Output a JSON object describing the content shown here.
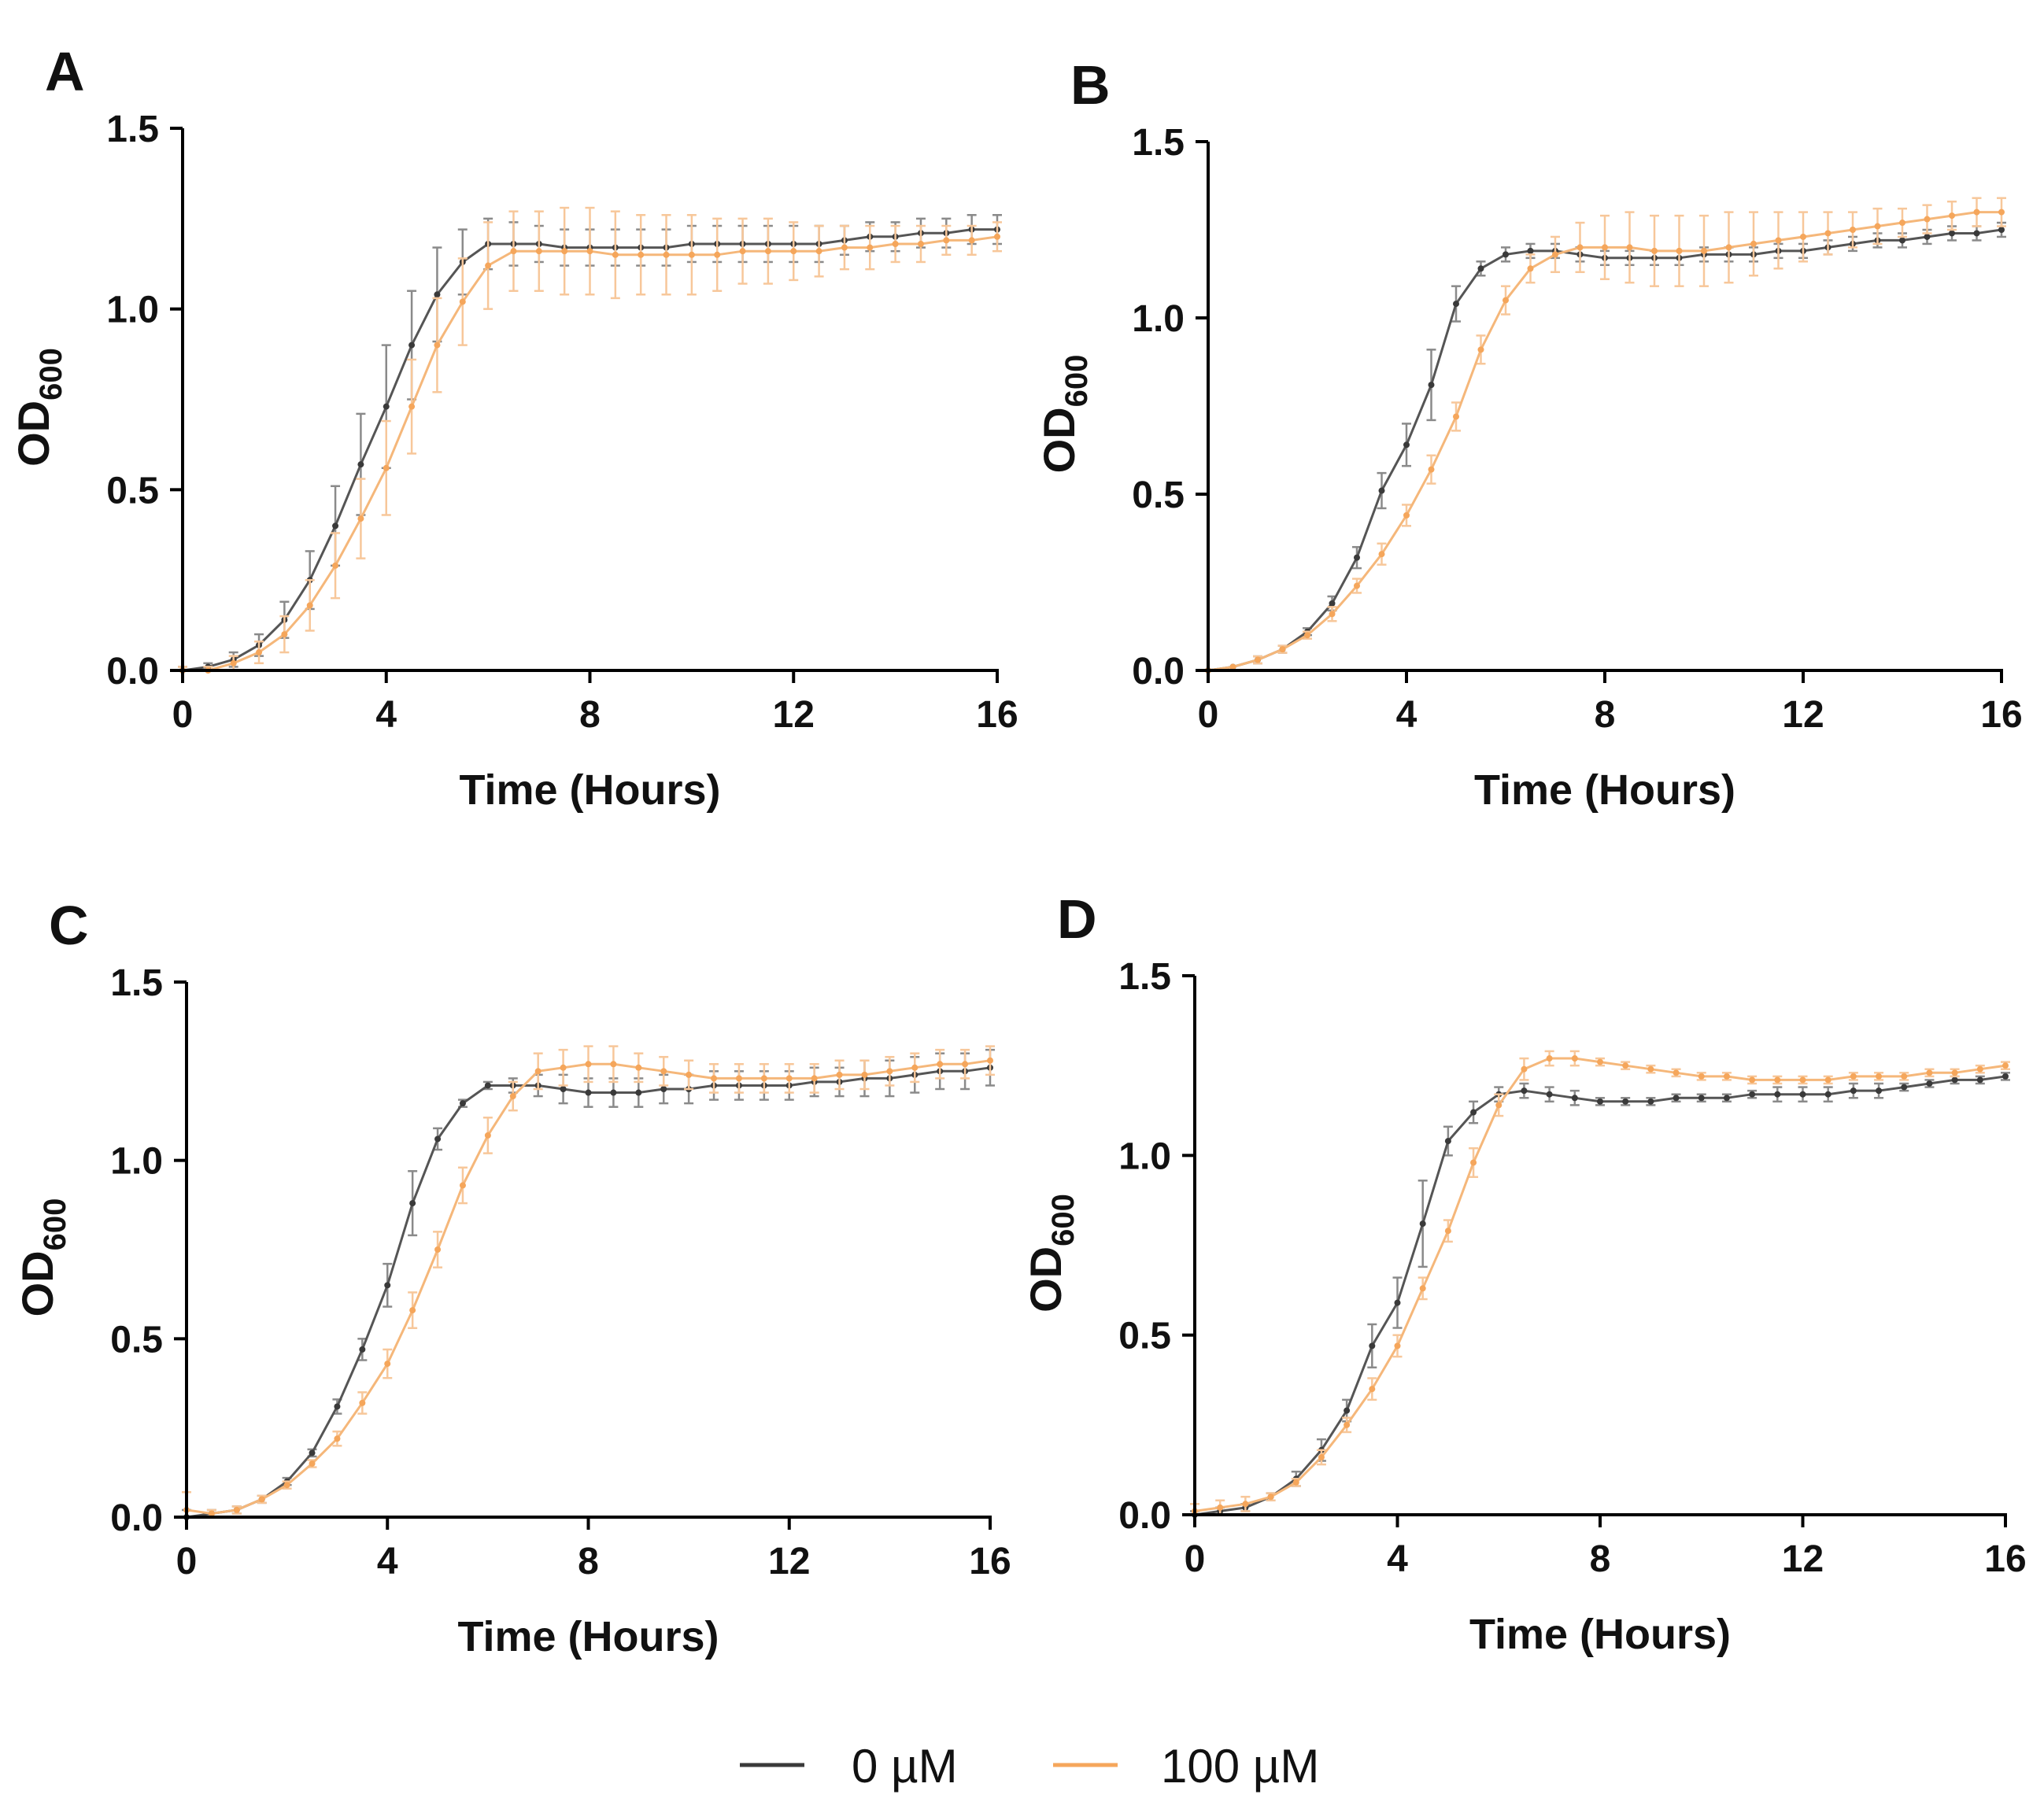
{
  "figure": {
    "legend": {
      "placement": "bottom-center",
      "entries": [
        {
          "label": "0 µM",
          "color": "#3a3a3a"
        },
        {
          "label": "100 µM",
          "color": "#f5a65b"
        }
      ]
    }
  },
  "chart_data": [
    {
      "panel": "A",
      "type": "line",
      "xlabel": "Time (Hours)",
      "ylabel_main": "OD",
      "ylabel_sub": "600",
      "xlim": [
        0,
        16
      ],
      "ylim": [
        0,
        1.5
      ],
      "xticks": [
        "0",
        "4",
        "8",
        "12",
        "16"
      ],
      "yticks": [
        "0.0",
        "0.5",
        "1.0",
        "1.5"
      ],
      "grid": false,
      "x": [
        0,
        0.5,
        1,
        1.5,
        2,
        2.5,
        3,
        3.5,
        4,
        4.5,
        5,
        5.5,
        6,
        6.5,
        7,
        7.5,
        8,
        8.5,
        9,
        9.5,
        10,
        10.5,
        11,
        11.5,
        12,
        12.5,
        13,
        13.5,
        14,
        14.5,
        15,
        15.5,
        16
      ],
      "series": [
        {
          "name": "0 µM",
          "color": "#3a3a3a",
          "values": [
            0.0,
            0.01,
            0.03,
            0.07,
            0.14,
            0.25,
            0.4,
            0.57,
            0.73,
            0.9,
            1.04,
            1.13,
            1.18,
            1.18,
            1.18,
            1.17,
            1.17,
            1.17,
            1.17,
            1.17,
            1.18,
            1.18,
            1.18,
            1.18,
            1.18,
            1.18,
            1.19,
            1.2,
            1.2,
            1.21,
            1.21,
            1.22,
            1.22
          ],
          "errors": [
            0.01,
            0.01,
            0.02,
            0.03,
            0.05,
            0.08,
            0.11,
            0.14,
            0.17,
            0.15,
            0.13,
            0.09,
            0.07,
            0.06,
            0.05,
            0.05,
            0.05,
            0.05,
            0.05,
            0.05,
            0.05,
            0.05,
            0.05,
            0.05,
            0.05,
            0.05,
            0.04,
            0.04,
            0.04,
            0.04,
            0.04,
            0.04,
            0.04
          ]
        },
        {
          "name": "100 µM",
          "color": "#f5a65b",
          "values": [
            0.0,
            0.0,
            0.02,
            0.05,
            0.1,
            0.18,
            0.29,
            0.42,
            0.56,
            0.73,
            0.9,
            1.02,
            1.12,
            1.16,
            1.16,
            1.16,
            1.16,
            1.15,
            1.15,
            1.15,
            1.15,
            1.15,
            1.16,
            1.16,
            1.16,
            1.16,
            1.17,
            1.17,
            1.18,
            1.18,
            1.19,
            1.19,
            1.2
          ],
          "errors": [
            0.01,
            0.01,
            0.02,
            0.03,
            0.05,
            0.07,
            0.09,
            0.11,
            0.13,
            0.13,
            0.13,
            0.12,
            0.12,
            0.11,
            0.11,
            0.12,
            0.12,
            0.12,
            0.11,
            0.11,
            0.11,
            0.1,
            0.09,
            0.09,
            0.08,
            0.07,
            0.06,
            0.06,
            0.05,
            0.05,
            0.04,
            0.04,
            0.04
          ]
        }
      ]
    },
    {
      "panel": "B",
      "type": "line",
      "xlabel": "Time (Hours)",
      "ylabel_main": "OD",
      "ylabel_sub": "600",
      "xlim": [
        0,
        16
      ],
      "ylim": [
        0,
        1.5
      ],
      "xticks": [
        "0",
        "4",
        "8",
        "12",
        "16"
      ],
      "yticks": [
        "0.0",
        "0.5",
        "1.0",
        "1.5"
      ],
      "grid": false,
      "x": [
        0,
        0.5,
        1,
        1.5,
        2,
        2.5,
        3,
        3.5,
        4,
        4.5,
        5,
        5.5,
        6,
        6.5,
        7,
        7.5,
        8,
        8.5,
        9,
        9.5,
        10,
        10.5,
        11,
        11.5,
        12,
        12.5,
        13,
        13.5,
        14,
        14.5,
        15,
        15.5,
        16
      ],
      "series": [
        {
          "name": "0 µM",
          "color": "#3a3a3a",
          "values": [
            0.0,
            0.01,
            0.03,
            0.06,
            0.11,
            0.19,
            0.32,
            0.51,
            0.64,
            0.81,
            1.04,
            1.14,
            1.18,
            1.19,
            1.19,
            1.18,
            1.17,
            1.17,
            1.17,
            1.17,
            1.18,
            1.18,
            1.18,
            1.19,
            1.19,
            1.2,
            1.21,
            1.22,
            1.22,
            1.23,
            1.24,
            1.24,
            1.25
          ],
          "errors": [
            0.0,
            0.0,
            0.01,
            0.01,
            0.01,
            0.02,
            0.03,
            0.05,
            0.06,
            0.1,
            0.05,
            0.02,
            0.02,
            0.02,
            0.02,
            0.02,
            0.02,
            0.02,
            0.02,
            0.02,
            0.02,
            0.02,
            0.02,
            0.02,
            0.02,
            0.02,
            0.02,
            0.02,
            0.02,
            0.02,
            0.02,
            0.02,
            0.02
          ]
        },
        {
          "name": "100 µM",
          "color": "#f5a65b",
          "values": [
            0.0,
            0.01,
            0.03,
            0.06,
            0.1,
            0.16,
            0.24,
            0.33,
            0.44,
            0.57,
            0.72,
            0.91,
            1.05,
            1.14,
            1.18,
            1.2,
            1.2,
            1.2,
            1.19,
            1.19,
            1.19,
            1.2,
            1.21,
            1.22,
            1.23,
            1.24,
            1.25,
            1.26,
            1.27,
            1.28,
            1.29,
            1.3,
            1.3
          ],
          "errors": [
            0.0,
            0.0,
            0.01,
            0.01,
            0.01,
            0.02,
            0.02,
            0.03,
            0.03,
            0.04,
            0.04,
            0.04,
            0.04,
            0.04,
            0.05,
            0.07,
            0.09,
            0.1,
            0.1,
            0.1,
            0.1,
            0.1,
            0.09,
            0.08,
            0.07,
            0.06,
            0.05,
            0.05,
            0.04,
            0.04,
            0.04,
            0.04,
            0.04
          ]
        }
      ]
    },
    {
      "panel": "C",
      "type": "line",
      "xlabel": "Time (Hours)",
      "ylabel_main": "OD",
      "ylabel_sub": "600",
      "xlim": [
        0,
        16
      ],
      "ylim": [
        0,
        1.5
      ],
      "xticks": [
        "0",
        "4",
        "8",
        "12",
        "16"
      ],
      "yticks": [
        "0.0",
        "0.5",
        "1.0",
        "1.5"
      ],
      "grid": false,
      "x": [
        0,
        0.5,
        1,
        1.5,
        2,
        2.5,
        3,
        3.5,
        4,
        4.5,
        5,
        5.5,
        6,
        6.5,
        7,
        7.5,
        8,
        8.5,
        9,
        9.5,
        10,
        10.5,
        11,
        11.5,
        12,
        12.5,
        13,
        13.5,
        14,
        14.5,
        15,
        15.5,
        16
      ],
      "series": [
        {
          "name": "0 µM",
          "color": "#3a3a3a",
          "values": [
            0.0,
            0.01,
            0.02,
            0.05,
            0.1,
            0.18,
            0.31,
            0.47,
            0.65,
            0.88,
            1.06,
            1.16,
            1.21,
            1.21,
            1.21,
            1.2,
            1.19,
            1.19,
            1.19,
            1.2,
            1.2,
            1.21,
            1.21,
            1.21,
            1.21,
            1.22,
            1.22,
            1.23,
            1.23,
            1.24,
            1.25,
            1.25,
            1.26
          ],
          "errors": [
            0.02,
            0.01,
            0.01,
            0.01,
            0.01,
            0.01,
            0.02,
            0.03,
            0.06,
            0.09,
            0.03,
            0.01,
            0.01,
            0.02,
            0.03,
            0.04,
            0.04,
            0.04,
            0.04,
            0.04,
            0.04,
            0.04,
            0.04,
            0.04,
            0.04,
            0.04,
            0.04,
            0.05,
            0.05,
            0.05,
            0.05,
            0.05,
            0.05
          ]
        },
        {
          "name": "100 µM",
          "color": "#f5a65b",
          "values": [
            0.02,
            0.01,
            0.02,
            0.05,
            0.09,
            0.15,
            0.22,
            0.32,
            0.43,
            0.58,
            0.75,
            0.93,
            1.07,
            1.18,
            1.25,
            1.26,
            1.27,
            1.27,
            1.26,
            1.25,
            1.24,
            1.23,
            1.23,
            1.23,
            1.23,
            1.23,
            1.24,
            1.24,
            1.25,
            1.26,
            1.27,
            1.27,
            1.28
          ],
          "errors": [
            0.05,
            0.01,
            0.01,
            0.01,
            0.01,
            0.01,
            0.02,
            0.03,
            0.04,
            0.05,
            0.05,
            0.05,
            0.05,
            0.04,
            0.05,
            0.05,
            0.05,
            0.05,
            0.04,
            0.04,
            0.04,
            0.04,
            0.04,
            0.04,
            0.04,
            0.04,
            0.04,
            0.04,
            0.04,
            0.04,
            0.04,
            0.04,
            0.04
          ]
        }
      ]
    },
    {
      "panel": "D",
      "type": "line",
      "xlabel": "Time (Hours)",
      "ylabel_main": "OD",
      "ylabel_sub": "600",
      "xlim": [
        0,
        16
      ],
      "ylim": [
        0,
        1.5
      ],
      "xticks": [
        "0",
        "4",
        "8",
        "12",
        "16"
      ],
      "yticks": [
        "0.0",
        "0.5",
        "1.0",
        "1.5"
      ],
      "grid": false,
      "x": [
        0,
        0.5,
        1,
        1.5,
        2,
        2.5,
        3,
        3.5,
        4,
        4.5,
        5,
        5.5,
        6,
        6.5,
        7,
        7.5,
        8,
        8.5,
        9,
        9.5,
        10,
        10.5,
        11,
        11.5,
        12,
        12.5,
        13,
        13.5,
        14,
        14.5,
        15,
        15.5,
        16
      ],
      "series": [
        {
          "name": "0 µM",
          "color": "#3a3a3a",
          "values": [
            0.0,
            0.01,
            0.02,
            0.05,
            0.1,
            0.18,
            0.29,
            0.47,
            0.59,
            0.81,
            1.04,
            1.12,
            1.17,
            1.18,
            1.17,
            1.16,
            1.15,
            1.15,
            1.15,
            1.16,
            1.16,
            1.16,
            1.17,
            1.17,
            1.17,
            1.17,
            1.18,
            1.18,
            1.19,
            1.2,
            1.21,
            1.21,
            1.22
          ],
          "errors": [
            0.01,
            0.01,
            0.01,
            0.01,
            0.02,
            0.03,
            0.03,
            0.06,
            0.07,
            0.12,
            0.04,
            0.03,
            0.02,
            0.02,
            0.02,
            0.02,
            0.01,
            0.01,
            0.01,
            0.01,
            0.01,
            0.01,
            0.01,
            0.02,
            0.02,
            0.02,
            0.02,
            0.02,
            0.01,
            0.01,
            0.01,
            0.01,
            0.01
          ]
        },
        {
          "name": "100 µM",
          "color": "#f5a65b",
          "values": [
            0.01,
            0.02,
            0.03,
            0.05,
            0.09,
            0.16,
            0.25,
            0.35,
            0.47,
            0.63,
            0.79,
            0.98,
            1.14,
            1.24,
            1.27,
            1.27,
            1.26,
            1.25,
            1.24,
            1.23,
            1.22,
            1.22,
            1.21,
            1.21,
            1.21,
            1.21,
            1.22,
            1.22,
            1.22,
            1.23,
            1.23,
            1.24,
            1.25
          ],
          "errors": [
            0.02,
            0.02,
            0.02,
            0.01,
            0.01,
            0.02,
            0.02,
            0.03,
            0.03,
            0.03,
            0.03,
            0.04,
            0.03,
            0.03,
            0.02,
            0.02,
            0.01,
            0.01,
            0.01,
            0.01,
            0.01,
            0.01,
            0.01,
            0.01,
            0.01,
            0.01,
            0.01,
            0.01,
            0.01,
            0.01,
            0.01,
            0.01,
            0.01
          ]
        }
      ]
    }
  ]
}
